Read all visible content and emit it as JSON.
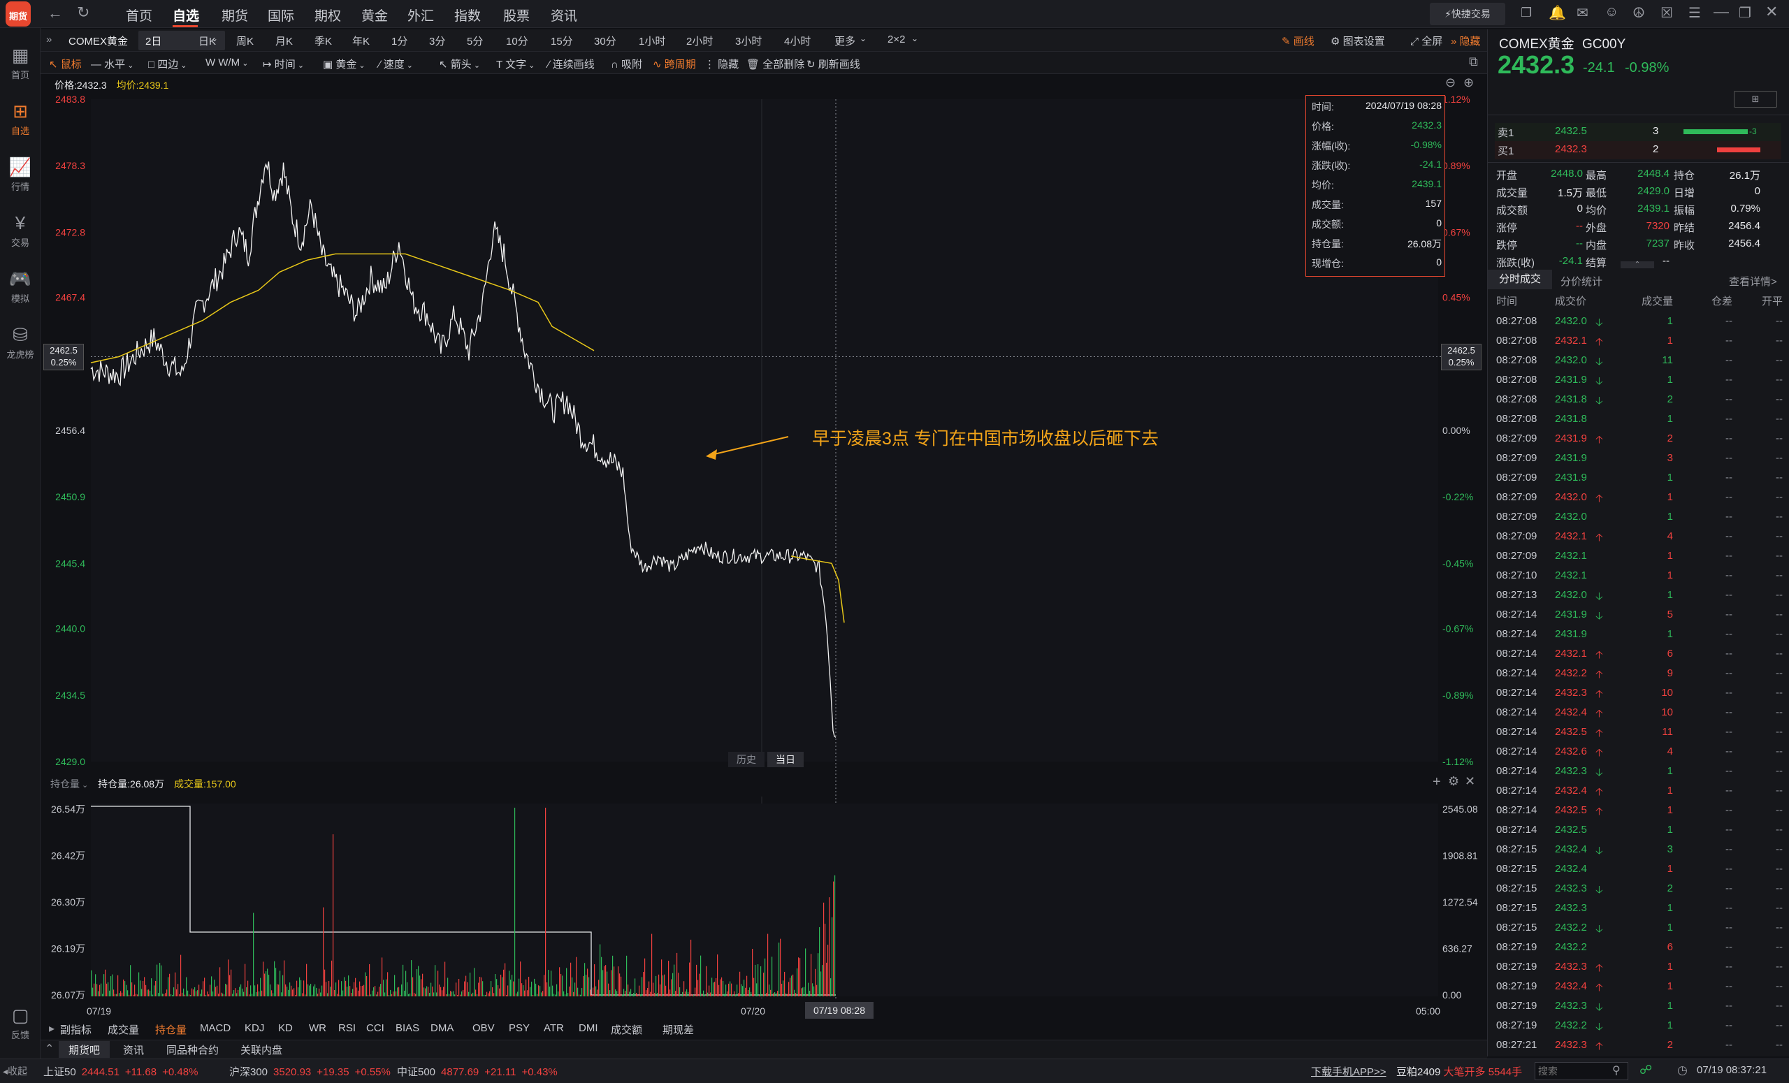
{
  "app": {
    "logo_text": "期货"
  },
  "nav": {
    "items": [
      "首页",
      "自选",
      "期货",
      "国际",
      "期权",
      "黄金",
      "外汇",
      "指数",
      "股票",
      "资讯"
    ],
    "active": "自选",
    "quick_trade": "快捷交易"
  },
  "sidebar": {
    "items": [
      {
        "label": "首页",
        "icon": "grid-icon"
      },
      {
        "label": "自选",
        "icon": "plus-square-icon",
        "active": true
      },
      {
        "label": "行情",
        "icon": "chart-icon"
      },
      {
        "label": "交易",
        "icon": "yen-icon"
      },
      {
        "label": "模拟",
        "icon": "gamepad-icon"
      },
      {
        "label": "龙虎榜",
        "icon": "database-icon"
      }
    ],
    "feedback": "反馈",
    "collapse": "收起"
  },
  "tabbar": {
    "symbol": "COMEX黄金",
    "period_select": "2日",
    "periods": [
      "日K",
      "周K",
      "月K",
      "季K",
      "年K",
      "1分",
      "3分",
      "5分",
      "10分",
      "15分",
      "30分",
      "1小时",
      "2小时",
      "3小时",
      "4小时",
      "更多",
      "2×2"
    ],
    "right": {
      "draw": "画线",
      "chart_settings": "图表设置",
      "fullscreen": "全屏",
      "hide": "隐藏"
    }
  },
  "toolbar": {
    "items": [
      "鼠标",
      "水平",
      "四边",
      "W/M",
      "时间",
      "黄金",
      "速度",
      "箭头",
      "文字",
      "连续画线",
      "吸附",
      "跨周期",
      "隐藏",
      "全部删除",
      "刷新画线"
    ]
  },
  "price_header": {
    "price": "价格:2432.3",
    "avg": "均价:2439.1"
  },
  "y_axis_left": [
    "2483.8",
    "2478.3",
    "2472.8",
    "2467.4",
    "2462.5",
    "2456.4",
    "2450.9",
    "2445.4",
    "2440.0",
    "2434.5",
    "2429.0"
  ],
  "y_axis_right": [
    "1.12%",
    "0.89%",
    "0.67%",
    "0.45%",
    "0.25%",
    "0.00%",
    "-0.22%",
    "-0.45%",
    "-0.67%",
    "-0.89%",
    "-1.12%"
  ],
  "crosshair": {
    "left_price": "2462.5",
    "left_pct": "0.25%",
    "right_price": "2462.5",
    "right_pct": "0.25%"
  },
  "tooltip": {
    "rows": [
      {
        "k": "时间:",
        "v": "2024/07/19 08:28",
        "c": "white"
      },
      {
        "k": "价格:",
        "v": "2432.3",
        "c": "green"
      },
      {
        "k": "涨幅(收):",
        "v": "-0.98%",
        "c": "green"
      },
      {
        "k": "涨跌(收):",
        "v": "-24.1",
        "c": "green"
      },
      {
        "k": "均价:",
        "v": "2439.1",
        "c": "green"
      },
      {
        "k": "成交量:",
        "v": "157",
        "c": "white"
      },
      {
        "k": "成交额:",
        "v": "0",
        "c": "white"
      },
      {
        "k": "持仓量:",
        "v": "26.08万",
        "c": "white"
      },
      {
        "k": "现增仓:",
        "v": "0",
        "c": "white"
      }
    ]
  },
  "annotation": "早于凌晨3点 专门在中国市场收盘以后砸下去",
  "hist_buttons": {
    "history": "历史",
    "today": "当日"
  },
  "sub_chart": {
    "select": "持仓量",
    "oi": "持仓量:26.08万",
    "vol": "成交量:157.00",
    "left_ticks": [
      "26.54万",
      "26.42万",
      "26.30万",
      "26.19万",
      "26.07万"
    ],
    "right_ticks": [
      "2545.08",
      "1908.81",
      "1272.54",
      "636.27",
      "0.00"
    ]
  },
  "x_axis": {
    "labels": [
      "07/19",
      "07/20",
      "05:00"
    ],
    "cursor": "07/19 08:28"
  },
  "indicator_tabs": [
    "副指标",
    "成交量",
    "持仓量",
    "MACD",
    "KDJ",
    "KD",
    "WR",
    "RSI",
    "CCI",
    "BIAS",
    "DMA",
    "OBV",
    "PSY",
    "ATR",
    "DMI",
    "成交额",
    "期现差"
  ],
  "bottom_tabs": [
    "期货吧",
    "资讯",
    "同品种合约",
    "关联内盘"
  ],
  "quote": {
    "name": "COMEX黄金",
    "code": "GC00Y",
    "price": "2432.3",
    "change": "-24.1",
    "pct": "-0.98%",
    "ask_label": "卖1",
    "ask_price": "2432.5",
    "ask_vol": "3",
    "ask_diff": "-3",
    "bid_label": "买1",
    "bid_price": "2432.3",
    "bid_vol": "2",
    "stats": [
      [
        "开盘",
        "2448.0",
        "最高",
        "2448.4",
        "持仓",
        "26.1万"
      ],
      [
        "成交量",
        "1.5万",
        "最低",
        "2429.0",
        "日增",
        "0"
      ],
      [
        "成交额",
        "0",
        "均价",
        "2439.1",
        "振幅",
        "0.79%"
      ],
      [
        "涨停",
        "--",
        "外盘",
        "7320",
        "昨结",
        "2456.4"
      ],
      [
        "跌停",
        "--",
        "内盘",
        "7237",
        "昨收",
        "2456.4"
      ],
      [
        "涨跌(收)",
        "-24.1",
        "结算",
        "--",
        "",
        ""
      ]
    ]
  },
  "trades_tabs": {
    "t1": "分时成交",
    "t2": "分价统计",
    "more": "查看详情>"
  },
  "trades_header": [
    "时间",
    "成交价",
    "成交量",
    "仓差",
    "开平"
  ],
  "trades": [
    [
      "08:27:08",
      "2432.0",
      "d",
      "1",
      "g"
    ],
    [
      "08:27:08",
      "2432.1",
      "u",
      "1",
      "r"
    ],
    [
      "08:27:08",
      "2432.0",
      "d",
      "11",
      "g"
    ],
    [
      "08:27:08",
      "2431.9",
      "d",
      "1",
      "g"
    ],
    [
      "08:27:08",
      "2431.8",
      "d",
      "2",
      "g"
    ],
    [
      "08:27:08",
      "2431.8",
      "",
      "1",
      "g"
    ],
    [
      "08:27:09",
      "2431.9",
      "u",
      "2",
      "r"
    ],
    [
      "08:27:09",
      "2431.9",
      "",
      "3",
      "r"
    ],
    [
      "08:27:09",
      "2431.9",
      "",
      "1",
      "g"
    ],
    [
      "08:27:09",
      "2432.0",
      "u",
      "1",
      "r"
    ],
    [
      "08:27:09",
      "2432.0",
      "",
      "1",
      "g"
    ],
    [
      "08:27:09",
      "2432.1",
      "u",
      "4",
      "r"
    ],
    [
      "08:27:09",
      "2432.1",
      "",
      "1",
      "r"
    ],
    [
      "08:27:10",
      "2432.1",
      "",
      "1",
      "r"
    ],
    [
      "08:27:13",
      "2432.0",
      "d",
      "1",
      "g"
    ],
    [
      "08:27:14",
      "2431.9",
      "d",
      "5",
      "r"
    ],
    [
      "08:27:14",
      "2431.9",
      "",
      "1",
      "g"
    ],
    [
      "08:27:14",
      "2432.1",
      "u",
      "6",
      "r"
    ],
    [
      "08:27:14",
      "2432.2",
      "u",
      "9",
      "r"
    ],
    [
      "08:27:14",
      "2432.3",
      "u",
      "10",
      "r"
    ],
    [
      "08:27:14",
      "2432.4",
      "u",
      "10",
      "r"
    ],
    [
      "08:27:14",
      "2432.5",
      "u",
      "11",
      "r"
    ],
    [
      "08:27:14",
      "2432.6",
      "u",
      "4",
      "r"
    ],
    [
      "08:27:14",
      "2432.3",
      "d",
      "1",
      "g"
    ],
    [
      "08:27:14",
      "2432.4",
      "u",
      "1",
      "r"
    ],
    [
      "08:27:14",
      "2432.5",
      "u",
      "1",
      "r"
    ],
    [
      "08:27:14",
      "2432.5",
      "",
      "1",
      "g"
    ],
    [
      "08:27:15",
      "2432.4",
      "d",
      "3",
      "g"
    ],
    [
      "08:27:15",
      "2432.4",
      "",
      "1",
      "r"
    ],
    [
      "08:27:15",
      "2432.3",
      "d",
      "2",
      "g"
    ],
    [
      "08:27:15",
      "2432.3",
      "",
      "1",
      "g"
    ],
    [
      "08:27:15",
      "2432.2",
      "d",
      "1",
      "g"
    ],
    [
      "08:27:19",
      "2432.2",
      "",
      "6",
      "r"
    ],
    [
      "08:27:19",
      "2432.3",
      "u",
      "1",
      "r"
    ],
    [
      "08:27:19",
      "2432.4",
      "u",
      "1",
      "r"
    ],
    [
      "08:27:19",
      "2432.3",
      "d",
      "1",
      "g"
    ],
    [
      "08:27:19",
      "2432.2",
      "d",
      "1",
      "g"
    ],
    [
      "08:27:21",
      "2432.3",
      "u",
      "2",
      "r"
    ]
  ],
  "statusbar": {
    "items": [
      {
        "name": "上证50",
        "value": "2444.51",
        "chg": "+11.68",
        "pct": "+0.48%"
      },
      {
        "name": "沪深300",
        "value": "3520.93",
        "chg": "+19.35",
        "pct": "+0.55%"
      },
      {
        "name": "中证500",
        "value": "4877.69",
        "chg": "+21.11",
        "pct": "+0.43%"
      }
    ],
    "download": "下载手机APP>>",
    "news": "豆粕2409",
    "news_alert": "大笔开多 5544手",
    "search_placeholder": "搜索",
    "clock": "07/19 08:37:21"
  },
  "colors": {
    "red": "#f0413f",
    "green": "#2fba5a",
    "yellow": "#e6c619",
    "annotation": "#f3a419"
  }
}
